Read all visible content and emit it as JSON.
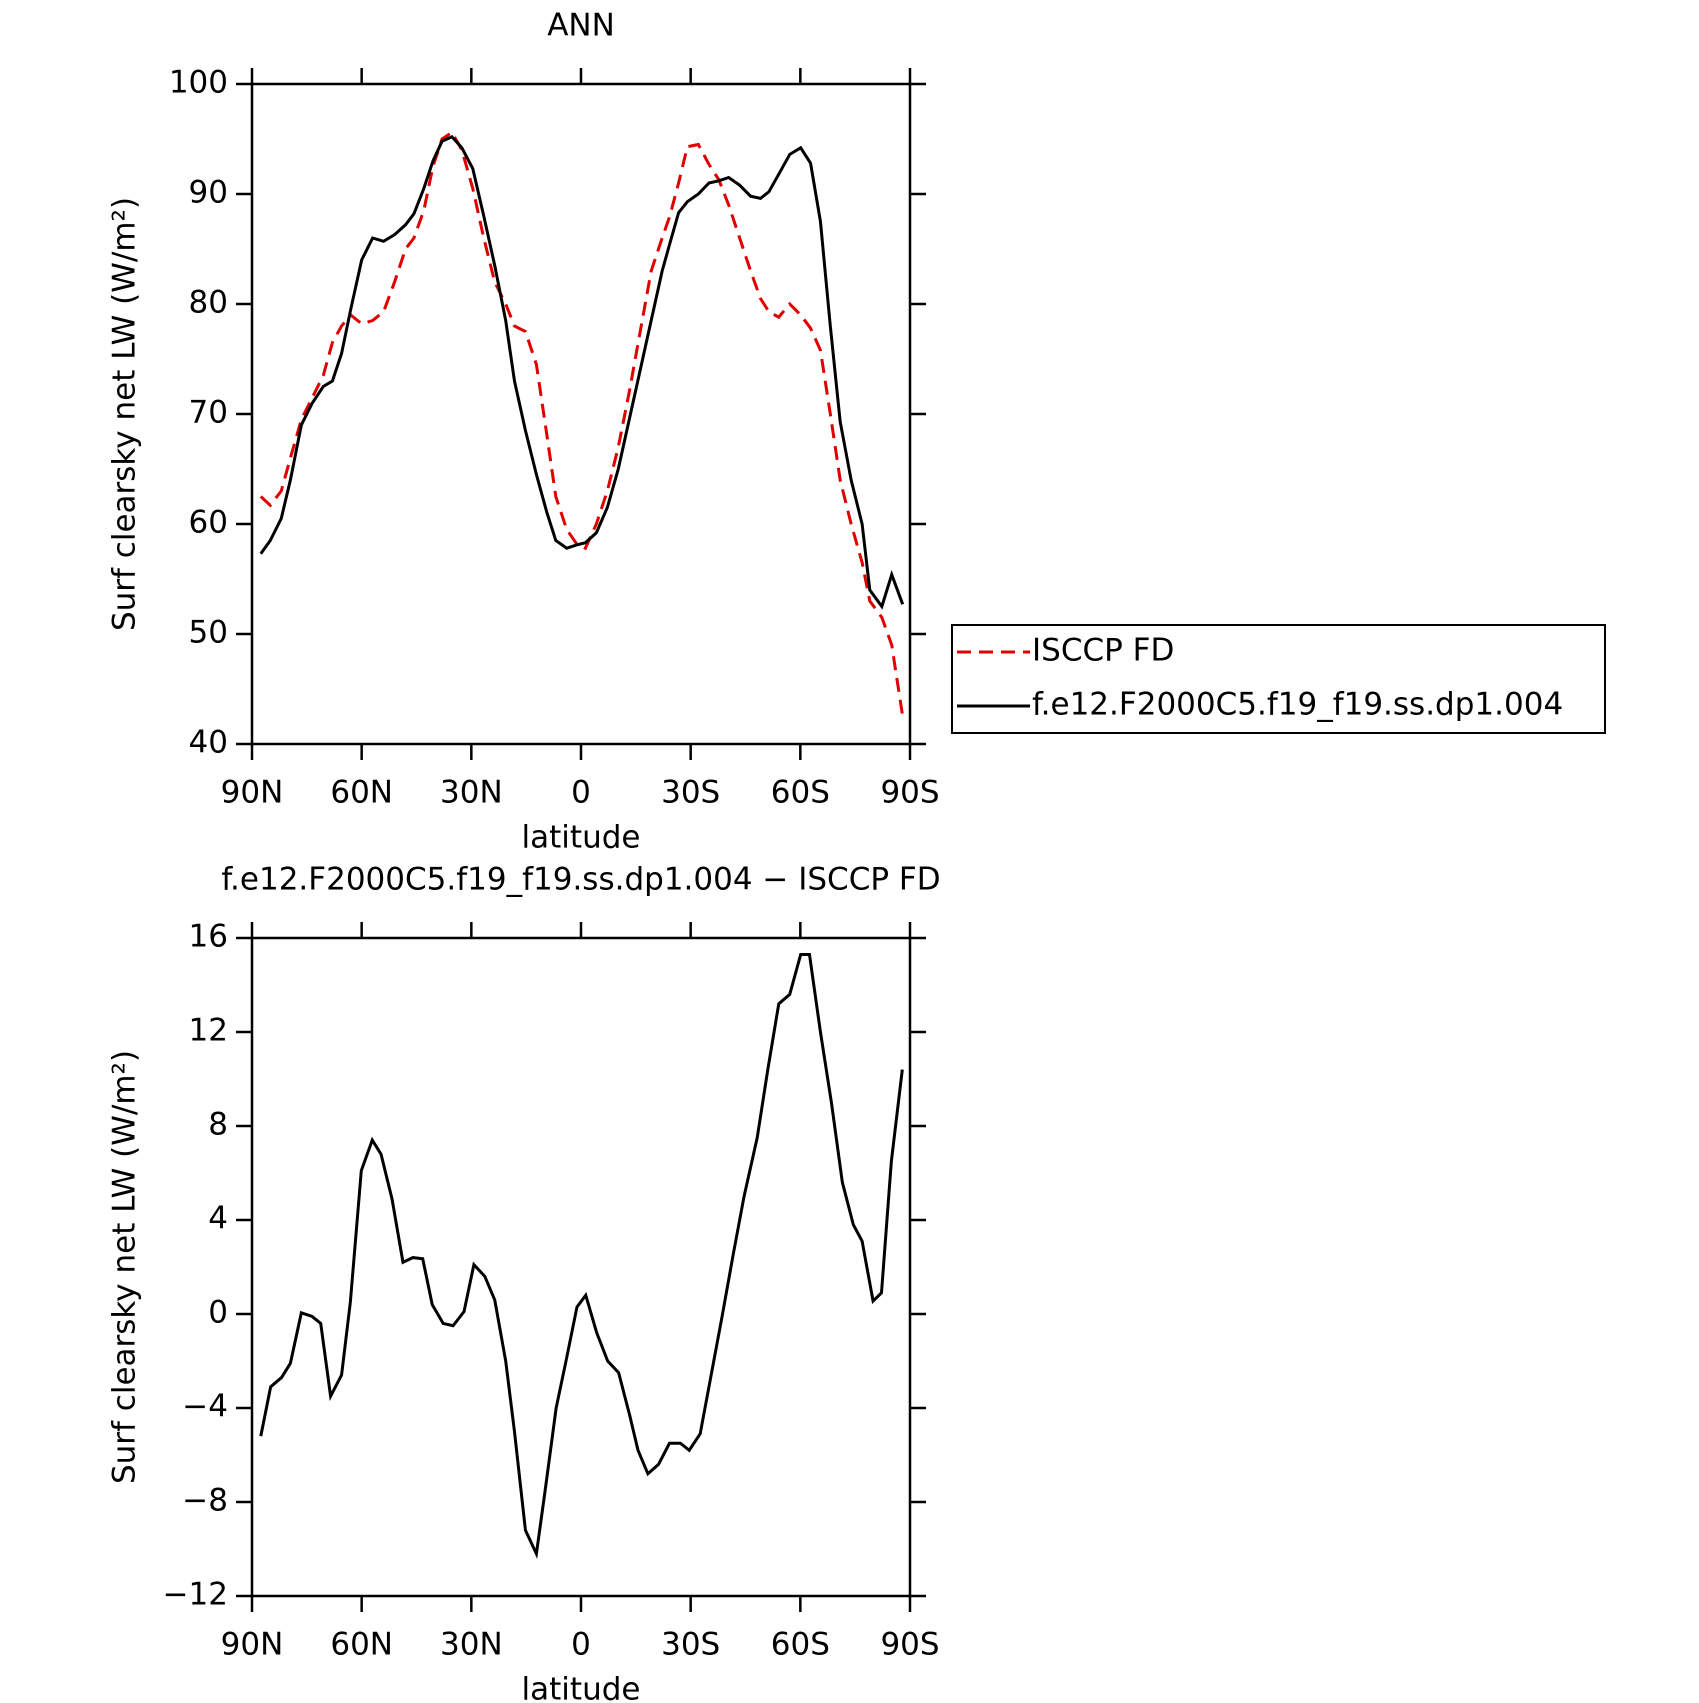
{
  "chart_data": [
    {
      "type": "line",
      "title": "ANN",
      "xlabel": "latitude",
      "ylabel": "Surf clearsky net LW (W/m²)",
      "x": [
        87.6,
        85,
        82,
        79.5,
        76.5,
        73.5,
        70.5,
        68,
        65.5,
        63,
        60,
        57,
        54,
        51,
        48,
        45.7,
        43,
        40.5,
        38,
        35.3,
        32.6,
        29.6,
        26.6,
        23.6,
        20.6,
        18.2,
        15.2,
        12.2,
        9.3,
        6.9,
        3.9,
        1.2,
        -1.2,
        -4.2,
        -7.2,
        -10.2,
        -13.2,
        -16.2,
        -19.2,
        -22.2,
        -24.3,
        -26.7,
        -29.1,
        -32.1,
        -35,
        -37.7,
        -40.4,
        -43.4,
        -46.4,
        -49.1,
        -51.4,
        -54.1,
        -57.1,
        -60.1,
        -62.8,
        -65.5,
        -68.2,
        -70.9,
        -73.9,
        -76.9,
        -79,
        -82.3,
        -85,
        -88
      ],
      "series": [
        {
          "name": "ISCCP FD",
          "color": "#e00000",
          "style": "dashed",
          "values": [
            62.5,
            61.7,
            63,
            66,
            69.5,
            71.5,
            73.5,
            76.5,
            78,
            79,
            78.2,
            78.5,
            79.3,
            82,
            85,
            86,
            88.5,
            92.5,
            95,
            95.6,
            94,
            90.5,
            86,
            82,
            80,
            78,
            77.5,
            74.5,
            68,
            62.5,
            59.5,
            58.2,
            57.8,
            60,
            63,
            67,
            72,
            77.5,
            83,
            86,
            88,
            91,
            94.3,
            94.5,
            92.7,
            91.3,
            89,
            86,
            83,
            80.5,
            79.3,
            78.8,
            80,
            79,
            77.8,
            75.8,
            70,
            64,
            60,
            56.5,
            53,
            51.5,
            49,
            42.5
          ]
        },
        {
          "name": "f.e12.F2000C5.f19_f19.ss.dp1.004",
          "color": "#000000",
          "style": "solid",
          "values": [
            57.3,
            58.5,
            60.5,
            64,
            69,
            71,
            72.5,
            73,
            75.5,
            79.5,
            84,
            86,
            85.7,
            86.3,
            87.2,
            88.2,
            90.5,
            93,
            94.8,
            95.2,
            94.2,
            92.3,
            88,
            83.5,
            78.5,
            73,
            68.5,
            64.5,
            61,
            58.5,
            57.8,
            58.1,
            58.3,
            59.2,
            61.5,
            65,
            69.5,
            74,
            78.5,
            83,
            85.5,
            88.3,
            89.3,
            90,
            91,
            91.2,
            91.5,
            90.8,
            89.8,
            89.6,
            90.2,
            91.8,
            93.6,
            94.2,
            92.8,
            87.5,
            78,
            69.3,
            64,
            60,
            54,
            52.5,
            55.4,
            52.7
          ]
        }
      ],
      "xlim": [
        90,
        -90
      ],
      "xticks": [
        {
          "value": 90,
          "label": "90N"
        },
        {
          "value": 60,
          "label": "60N"
        },
        {
          "value": 30,
          "label": "30N"
        },
        0,
        {
          "value": -30,
          "label": "30S"
        },
        {
          "value": -60,
          "label": "60S"
        },
        {
          "value": -90,
          "label": "90S"
        }
      ],
      "ylim": [
        40,
        100
      ],
      "yticks": [
        40,
        50,
        60,
        70,
        80,
        90,
        100
      ],
      "legend": "right"
    },
    {
      "type": "line",
      "title": "f.e12.F2000C5.f19_f19.ss.dp1.004 − ISCCP FD",
      "xlabel": "latitude",
      "ylabel": "Surf clearsky net LW (W/m²)",
      "x": [
        87.6,
        84.9,
        81.9,
        79.5,
        76.5,
        73.6,
        71.2,
        68.5,
        65.5,
        63.1,
        60.1,
        57.1,
        54.7,
        51.7,
        48.7,
        46,
        43.3,
        40.7,
        37.7,
        35,
        32,
        29.3,
        26.3,
        23.6,
        20.6,
        18.2,
        15.2,
        12.2,
        9.8,
        6.8,
        4.1,
        1.1,
        -1.3,
        -4.3,
        -7.3,
        -10.3,
        -13.3,
        -15.6,
        -18.3,
        -21.2,
        -24.2,
        -27.2,
        -29.6,
        -32.6,
        -35.6,
        -38.6,
        -41.6,
        -44.6,
        -48.2,
        -51.1,
        -54.1,
        -57.1,
        -60.1,
        -62.5,
        -65.5,
        -68.5,
        -71.5,
        -74.5,
        -76.9,
        -79.9,
        -82.2,
        -84.9,
        -87.9
      ],
      "values": [
        -5.2,
        -3.1,
        -2.7,
        -2.1,
        0.05,
        -0.1,
        -0.4,
        -3.5,
        -2.6,
        0.5,
        6.1,
        7.4,
        6.8,
        4.9,
        2.2,
        2.4,
        2.35,
        0.4,
        -0.4,
        -0.5,
        0.1,
        2.1,
        1.6,
        0.6,
        -2,
        -5,
        -9.2,
        -10.2,
        -7.5,
        -4,
        -2,
        0.3,
        0.8,
        -0.8,
        -2,
        -2.5,
        -4.3,
        -5.8,
        -6.8,
        -6.4,
        -5.5,
        -5.5,
        -5.8,
        -5.1,
        -2.6,
        -0.1,
        2.5,
        5,
        7.5,
        10.4,
        13.2,
        13.6,
        15.3,
        15.3,
        12,
        9,
        5.6,
        3.8,
        3.1,
        0.55,
        0.9,
        6.5,
        10.4
      ],
      "color": "#000000",
      "xlim": [
        90,
        -90
      ],
      "xticks": [
        {
          "value": 90,
          "label": "90N"
        },
        {
          "value": 60,
          "label": "60N"
        },
        {
          "value": 30,
          "label": "30N"
        },
        0,
        {
          "value": -30,
          "label": "30S"
        },
        {
          "value": -60,
          "label": "60S"
        },
        {
          "value": -90,
          "label": "90S"
        }
      ],
      "ylim": [
        -12,
        16
      ],
      "yticks": [
        {
          "value": -12,
          "label": "−12"
        },
        {
          "value": -8,
          "label": "−8"
        },
        {
          "value": -4,
          "label": "−4"
        },
        0,
        4,
        8,
        12,
        16
      ]
    }
  ]
}
